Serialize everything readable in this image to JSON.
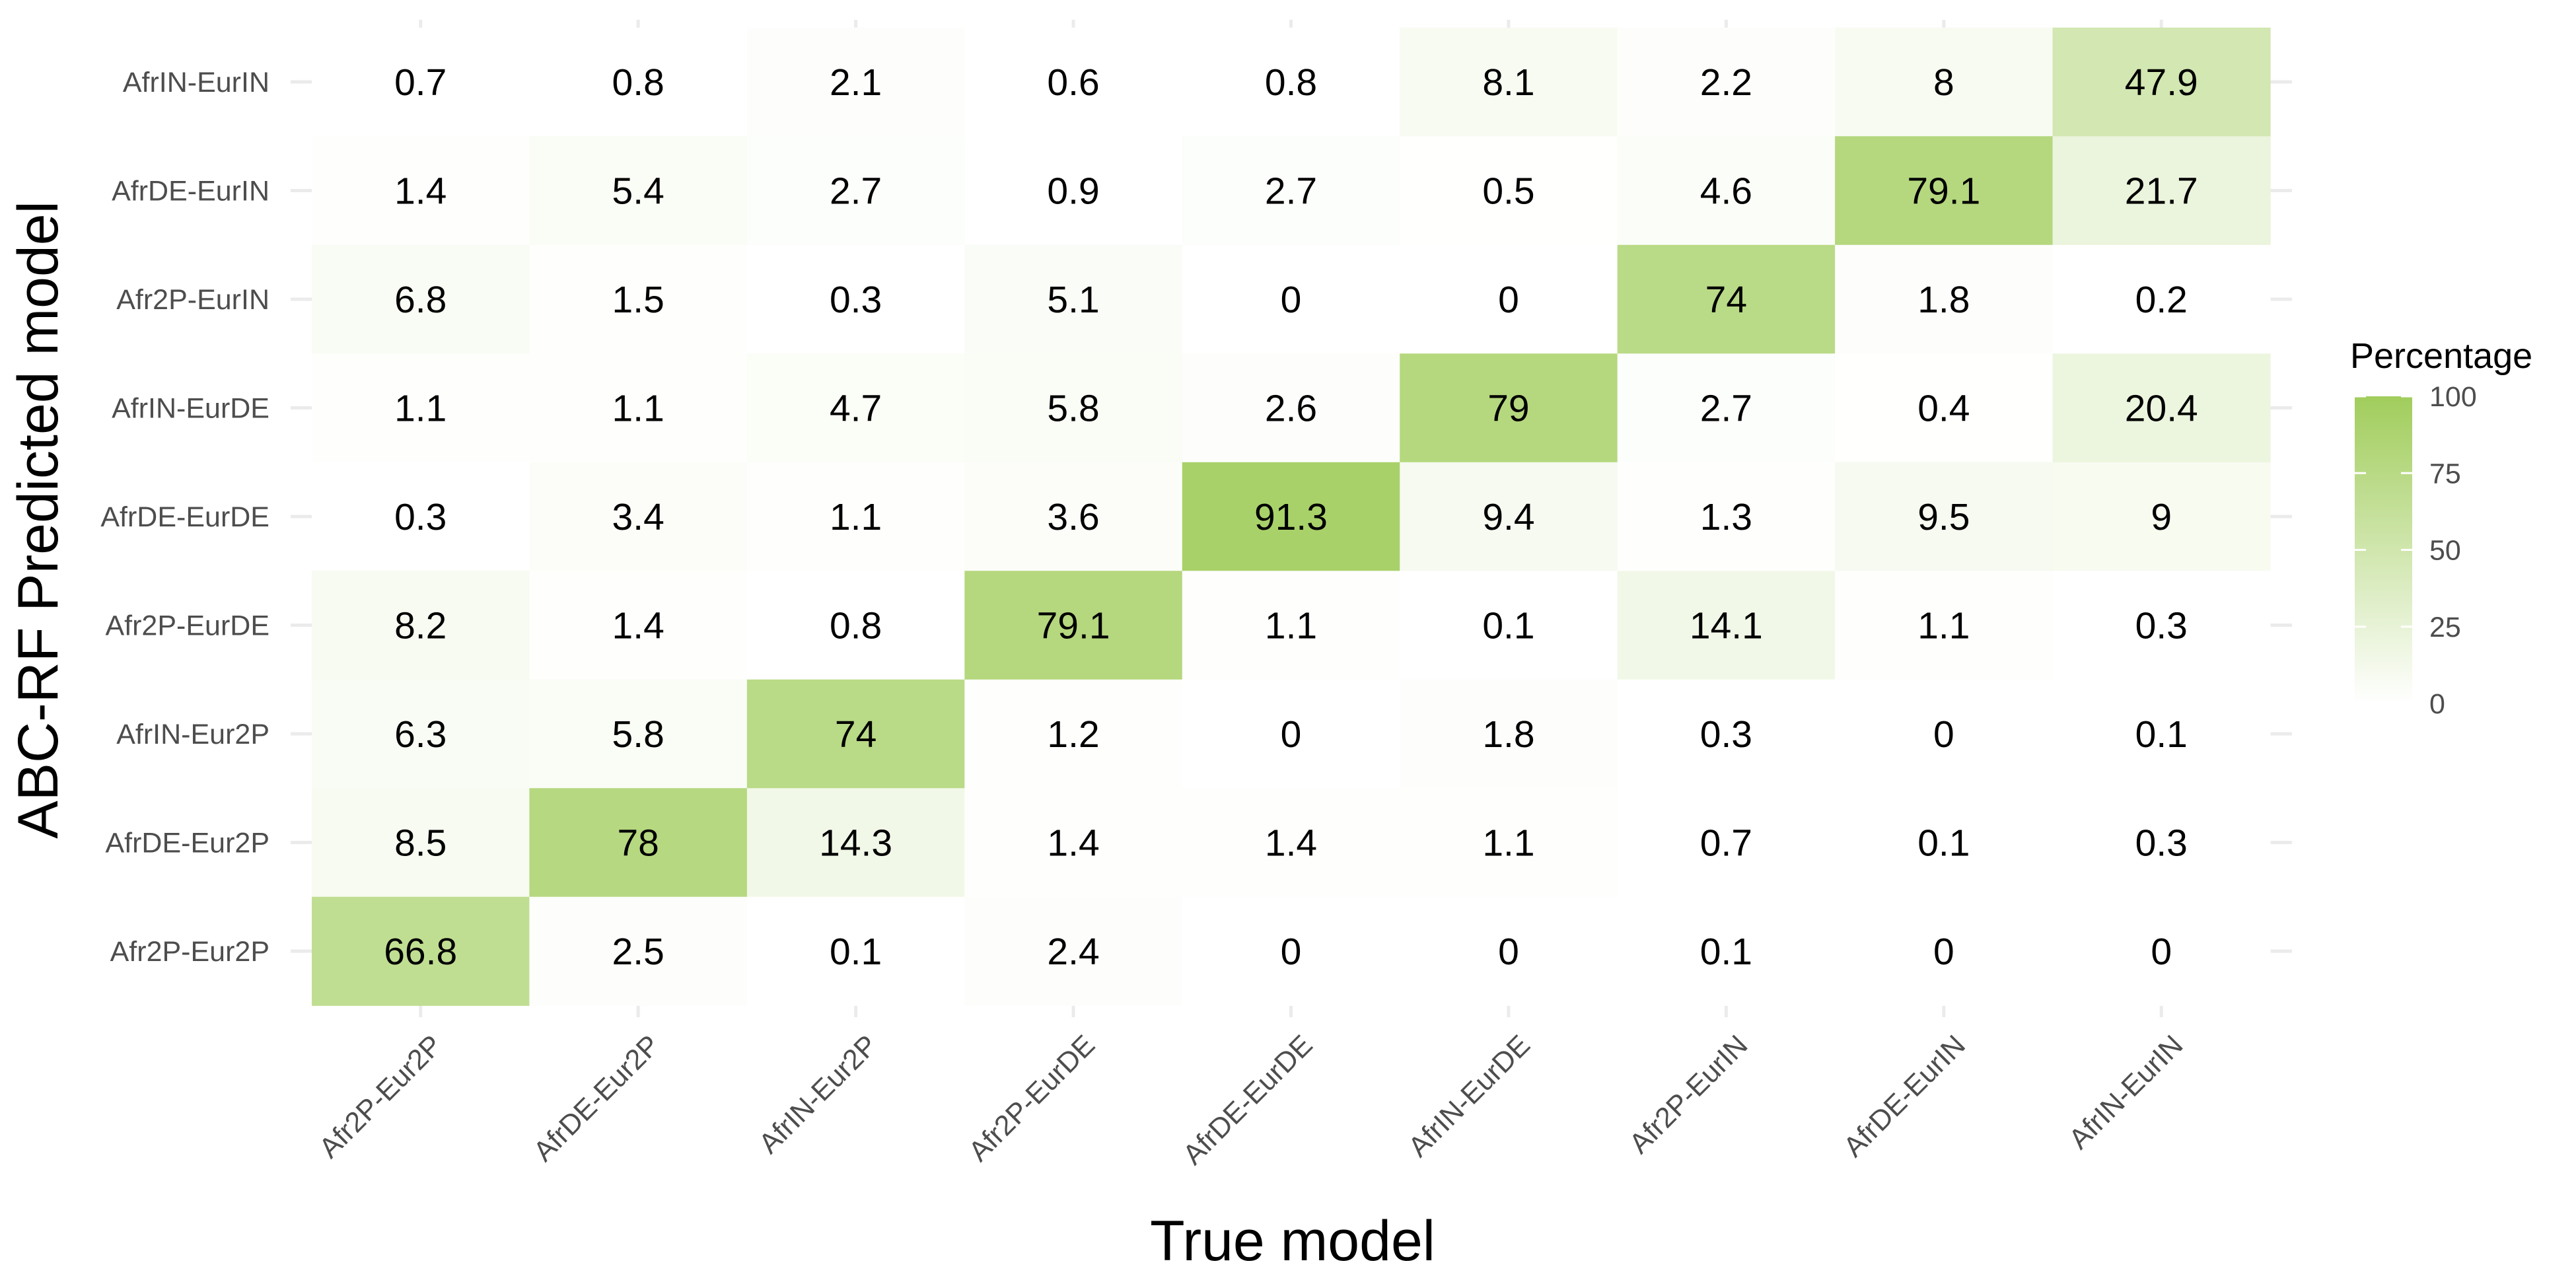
{
  "chart_data": {
    "type": "heatmap",
    "x_categories": [
      "Afr2P-Eur2P",
      "AfrDE-Eur2P",
      "AfrIN-Eur2P",
      "Afr2P-EurDE",
      "AfrDE-EurDE",
      "AfrIN-EurDE",
      "Afr2P-EurIN",
      "AfrDE-EurIN",
      "AfrIN-EurIN"
    ],
    "y_categories": [
      "Afr2P-Eur2P",
      "AfrDE-Eur2P",
      "AfrIN-Eur2P",
      "Afr2P-EurDE",
      "AfrDE-EurDE",
      "AfrIN-EurDE",
      "Afr2P-EurIN",
      "AfrDE-EurIN",
      "AfrIN-EurIN"
    ],
    "rows": [
      {
        "predicted": "AfrIN-EurIN",
        "values": [
          0.7,
          0.8,
          2.1,
          0.6,
          0.8,
          8.1,
          2.2,
          8,
          47.9
        ]
      },
      {
        "predicted": "AfrDE-EurIN",
        "values": [
          1.4,
          5.4,
          2.7,
          0.9,
          2.7,
          0.5,
          4.6,
          79.1,
          21.7
        ]
      },
      {
        "predicted": "Afr2P-EurIN",
        "values": [
          6.8,
          1.5,
          0.3,
          5.1,
          0,
          0,
          74,
          1.8,
          0.2
        ]
      },
      {
        "predicted": "AfrIN-EurDE",
        "values": [
          1.1,
          1.1,
          4.7,
          5.8,
          2.6,
          79,
          2.7,
          0.4,
          20.4
        ]
      },
      {
        "predicted": "AfrDE-EurDE",
        "values": [
          0.3,
          3.4,
          1.1,
          3.6,
          91.3,
          9.4,
          1.3,
          9.5,
          9
        ]
      },
      {
        "predicted": "Afr2P-EurDE",
        "values": [
          8.2,
          1.4,
          0.8,
          79.1,
          1.1,
          0.1,
          14.1,
          1.1,
          0.3
        ]
      },
      {
        "predicted": "AfrIN-Eur2P",
        "values": [
          6.3,
          5.8,
          74,
          1.2,
          0,
          1.8,
          0.3,
          0,
          0.1
        ]
      },
      {
        "predicted": "AfrDE-Eur2P",
        "values": [
          8.5,
          78,
          14.3,
          1.4,
          1.4,
          1.1,
          0.7,
          0.1,
          0.3
        ]
      },
      {
        "predicted": "Afr2P-Eur2P",
        "values": [
          66.8,
          2.5,
          0.1,
          2.4,
          0,
          0,
          0.1,
          0,
          0
        ]
      }
    ],
    "xlabel": "True model",
    "ylabel": "ABC-RF Predicted model",
    "legend": {
      "title": "Percentage",
      "ticks": [
        100,
        75,
        50,
        25,
        0
      ],
      "range": [
        0,
        100
      ],
      "placement": "right"
    },
    "color_low": "#ffffff",
    "color_high": "#a1cd5c"
  }
}
